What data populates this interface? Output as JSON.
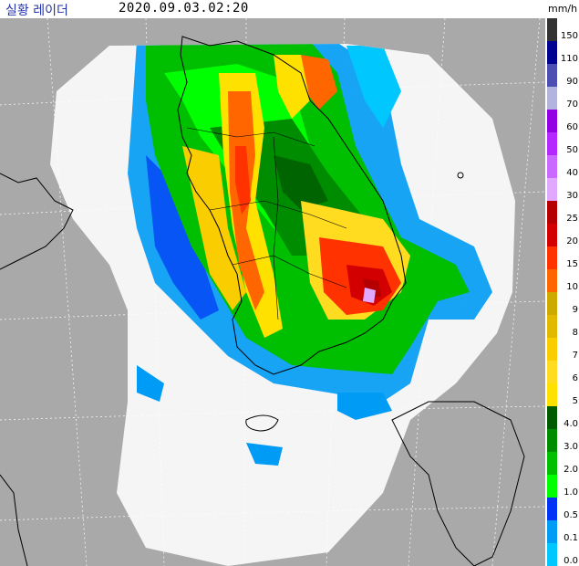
{
  "header": {
    "title": "실황 레이더",
    "timestamp": "2020.09.03.02:20",
    "unit": "mm/h"
  },
  "legend": {
    "items": [
      {
        "label": "150",
        "color": "#333333"
      },
      {
        "label": "110",
        "color": "#000390"
      },
      {
        "label": "90",
        "color": "#4c4eb1"
      },
      {
        "label": "70",
        "color": "#b3b4de"
      },
      {
        "label": "60",
        "color": "#9300e4"
      },
      {
        "label": "50",
        "color": "#b329ff"
      },
      {
        "label": "40",
        "color": "#c969ff"
      },
      {
        "label": "30",
        "color": "#e0a9ff"
      },
      {
        "label": "25",
        "color": "#b40000"
      },
      {
        "label": "20",
        "color": "#d20000"
      },
      {
        "label": "15",
        "color": "#ff3200"
      },
      {
        "label": "10",
        "color": "#ff6600"
      },
      {
        "label": "9",
        "color": "#ccaa00"
      },
      {
        "label": "8",
        "color": "#e0b900"
      },
      {
        "label": "7",
        "color": "#f9cd00"
      },
      {
        "label": "6",
        "color": "#ffdc1f"
      },
      {
        "label": "5",
        "color": "#ffe100"
      },
      {
        "label": "4.0",
        "color": "#005a00"
      },
      {
        "label": "3.0",
        "color": "#008c00"
      },
      {
        "label": "2.0",
        "color": "#00be00"
      },
      {
        "label": "1.0",
        "color": "#00ff00"
      },
      {
        "label": "0.5",
        "color": "#0033f5"
      },
      {
        "label": "0.1",
        "color": "#009bf5"
      },
      {
        "label": "0.0",
        "color": "#00c8ff"
      }
    ]
  },
  "colors": {
    "outside_coverage": "#a9a9a9",
    "coverage": "#f5f5f5",
    "grid": "#ffffff",
    "coastline": "#000000"
  }
}
